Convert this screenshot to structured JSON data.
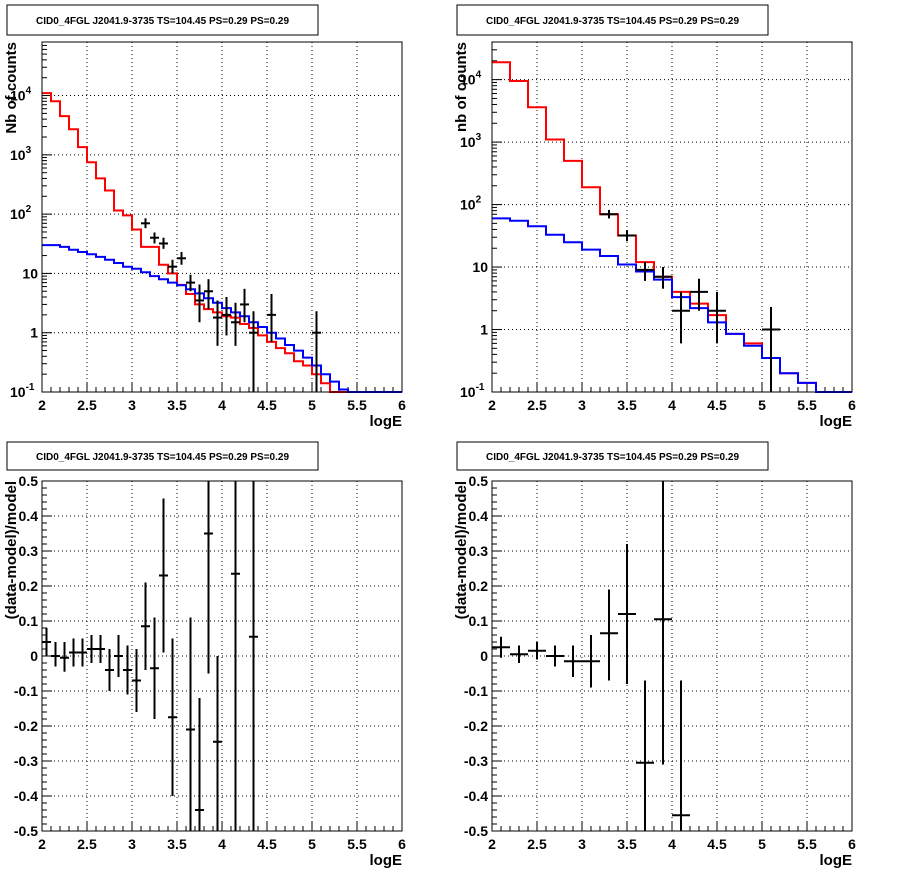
{
  "colors": {
    "model_total": "#ff0000",
    "model_background": "#0000ff",
    "data": "#000000"
  },
  "panels": [
    {
      "id": "counts-left",
      "title": "CID0_4FGL J2041.9-3735 TS=104.45 PS=0.29 PS=0.29"
    },
    {
      "id": "counts-right",
      "title": "CID0_4FGL J2041.9-3735 TS=104.45 PS=0.29 PS=0.29"
    },
    {
      "id": "resid-left",
      "title": "CID0_4FGL J2041.9-3735 TS=104.45 PS=0.29 PS=0.29"
    },
    {
      "id": "resid-right",
      "title": "CID0_4FGL J2041.9-3735 TS=104.45 PS=0.29 PS=0.29"
    }
  ],
  "chart_data": [
    {
      "type": "line",
      "title": "CID0_4FGL J2041.9-3735 TS=104.45 PS=0.29 PS=0.29",
      "xlabel": "logE",
      "ylabel": "Nb of counts",
      "xlim": [
        2,
        6
      ],
      "ylim": [
        0.1,
        80000
      ],
      "log_y": true,
      "grid": true,
      "x_ticks": [
        "2",
        "2.5",
        "3",
        "3.5",
        "4",
        "4.5",
        "5",
        "5.5",
        "6"
      ],
      "y_ticks": [
        "10^-1",
        "1",
        "10",
        "10^2",
        "10^3",
        "10^4"
      ],
      "bin_width": 0.1,
      "bin_starts": [
        2.0,
        2.1,
        2.2,
        2.3,
        2.4,
        2.5,
        2.6,
        2.7,
        2.8,
        2.9,
        3.0,
        3.1,
        3.2,
        3.3,
        3.4,
        3.5,
        3.6,
        3.7,
        3.8,
        3.9,
        4.0,
        4.1,
        4.2,
        4.3,
        4.4,
        4.5,
        4.6,
        4.7,
        4.8,
        4.9,
        5.0,
        5.1,
        5.2,
        5.3,
        5.4,
        5.5,
        5.6,
        5.7,
        5.8,
        5.9
      ],
      "series": [
        {
          "name": "",
          "role": "model_total",
          "values": [
            11000,
            8000,
            4500,
            2700,
            1350,
            750,
            400,
            250,
            115,
            95,
            55,
            28,
            28,
            14,
            10,
            6.4,
            4.5,
            3.0,
            2.5,
            2.2,
            1.9,
            1.8,
            1.4,
            1.2,
            0.9,
            0.7,
            0.55,
            0.45,
            0.33,
            0.28,
            0.2,
            0.14,
            0.1,
            0.1,
            0.1,
            0.1,
            0.1,
            0.1,
            0.1,
            0.1
          ]
        },
        {
          "name": "",
          "role": "model_background",
          "values": [
            30,
            30,
            28,
            25,
            23,
            21,
            19,
            17,
            15,
            13,
            12,
            10.5,
            9,
            8,
            7,
            6.3,
            5.4,
            4.6,
            3.8,
            3.2,
            2.6,
            2.2,
            1.9,
            1.5,
            1.25,
            1.0,
            0.8,
            0.62,
            0.5,
            0.38,
            0.28,
            0.2,
            0.15,
            0.11,
            0.1,
            0.1,
            0.1,
            0.1,
            0.1,
            0.1
          ]
        }
      ],
      "points": [
        {
          "x": 3.15,
          "y": 70,
          "lo": 58,
          "hi": 85
        },
        {
          "x": 3.25,
          "y": 40,
          "lo": 32,
          "hi": 49
        },
        {
          "x": 3.35,
          "y": 32,
          "lo": 26,
          "hi": 40
        },
        {
          "x": 3.45,
          "y": 13,
          "lo": 10,
          "hi": 17
        },
        {
          "x": 3.55,
          "y": 18,
          "lo": 14,
          "hi": 23
        },
        {
          "x": 3.65,
          "y": 7,
          "lo": 5,
          "hi": 9.5
        },
        {
          "x": 3.75,
          "y": 3.5,
          "lo": 1.5,
          "hi": 6.5
        },
        {
          "x": 3.85,
          "y": 5,
          "lo": 2.5,
          "hi": 8
        },
        {
          "x": 3.95,
          "y": 1.8,
          "lo": 0.6,
          "hi": 3.5
        },
        {
          "x": 4.05,
          "y": 2.0,
          "lo": 0.9,
          "hi": 4.0
        },
        {
          "x": 4.15,
          "y": 1.5,
          "lo": 0.6,
          "hi": 3.2
        },
        {
          "x": 4.25,
          "y": 3,
          "lo": 1.5,
          "hi": 5.5
        },
        {
          "x": 4.35,
          "y": 1,
          "lo": 0.1,
          "hi": 2.3
        },
        {
          "x": 4.55,
          "y": 2,
          "lo": 0.7,
          "hi": 4.5
        },
        {
          "x": 5.05,
          "y": 1,
          "lo": 0.1,
          "hi": 2.3
        }
      ]
    },
    {
      "type": "line",
      "title": "CID0_4FGL J2041.9-3735 TS=104.45 PS=0.29 PS=0.29",
      "xlabel": "logE",
      "ylabel": "nb of counts",
      "xlim": [
        2,
        6
      ],
      "ylim": [
        0.1,
        40000
      ],
      "log_y": true,
      "grid": true,
      "x_ticks": [
        "2",
        "2.5",
        "3",
        "3.5",
        "4",
        "4.5",
        "5",
        "5.5",
        "6"
      ],
      "y_ticks": [
        "10^-1",
        "1",
        "10",
        "10^2",
        "10^3",
        "10^4"
      ],
      "bin_width": 0.2,
      "bin_starts": [
        2.0,
        2.2,
        2.4,
        2.6,
        2.8,
        3.0,
        3.2,
        3.4,
        3.6,
        3.8,
        4.0,
        4.2,
        4.4,
        4.6,
        4.8,
        5.0,
        5.2,
        5.4,
        5.6,
        5.8
      ],
      "series": [
        {
          "name": "",
          "role": "model_total",
          "values": [
            19000,
            9500,
            3600,
            1100,
            500,
            190,
            70,
            32,
            12,
            7,
            4,
            2.6,
            1.7,
            0.85,
            0.6,
            0.35,
            0.2,
            0.14,
            0.1,
            0.1
          ]
        },
        {
          "name": "",
          "role": "model_background",
          "values": [
            60,
            55,
            45,
            33,
            25,
            19,
            15,
            11,
            8.5,
            6.3,
            3.3,
            2.2,
            1.3,
            0.85,
            0.55,
            0.35,
            0.2,
            0.14,
            0.1,
            0.1
          ]
        }
      ],
      "points": [
        {
          "x": 3.3,
          "y": 70,
          "lo": 60,
          "hi": 82
        },
        {
          "x": 3.5,
          "y": 32,
          "lo": 26,
          "hi": 39
        },
        {
          "x": 3.7,
          "y": 9,
          "lo": 6,
          "hi": 12
        },
        {
          "x": 3.9,
          "y": 7,
          "lo": 4.5,
          "hi": 10
        },
        {
          "x": 4.1,
          "y": 2,
          "lo": 0.6,
          "hi": 4
        },
        {
          "x": 4.3,
          "y": 4,
          "lo": 2,
          "hi": 6.5
        },
        {
          "x": 4.5,
          "y": 2,
          "lo": 0.6,
          "hi": 4
        },
        {
          "x": 5.1,
          "y": 1,
          "lo": 0.1,
          "hi": 2.3
        }
      ]
    },
    {
      "type": "scatter",
      "title": "CID0_4FGL J2041.9-3735 TS=104.45 PS=0.29 PS=0.29",
      "xlabel": "logE",
      "ylabel": "(data-model)/model",
      "xlim": [
        2,
        6
      ],
      "ylim": [
        -0.5,
        0.5
      ],
      "grid": true,
      "x_ticks": [
        "2",
        "2.5",
        "3",
        "3.5",
        "4",
        "4.5",
        "5",
        "5.5",
        "6"
      ],
      "y_ticks": [
        "-0.5",
        "-0.4",
        "-0.3",
        "-0.2",
        "-0.1",
        "0",
        "0.1",
        "0.2",
        "0.3",
        "0.4",
        "0.5"
      ],
      "bin_width": 0.1,
      "points": [
        {
          "x": 2.05,
          "y": 0.04,
          "lo": 0.0,
          "hi": 0.08
        },
        {
          "x": 2.15,
          "y": 0.0,
          "lo": -0.03,
          "hi": 0.04
        },
        {
          "x": 2.25,
          "y": -0.005,
          "lo": -0.045,
          "hi": 0.04
        },
        {
          "x": 2.35,
          "y": 0.01,
          "lo": -0.03,
          "hi": 0.05
        },
        {
          "x": 2.45,
          "y": 0.01,
          "lo": -0.03,
          "hi": 0.05
        },
        {
          "x": 2.55,
          "y": 0.02,
          "lo": -0.02,
          "hi": 0.06
        },
        {
          "x": 2.65,
          "y": 0.02,
          "lo": -0.02,
          "hi": 0.06
        },
        {
          "x": 2.75,
          "y": -0.04,
          "lo": -0.1,
          "hi": 0.02
        },
        {
          "x": 2.85,
          "y": 0.0,
          "lo": -0.06,
          "hi": 0.06
        },
        {
          "x": 2.95,
          "y": -0.04,
          "lo": -0.11,
          "hi": 0.03
        },
        {
          "x": 3.05,
          "y": -0.07,
          "lo": -0.16,
          "hi": 0.02
        },
        {
          "x": 3.15,
          "y": 0.085,
          "lo": -0.04,
          "hi": 0.21
        },
        {
          "x": 3.25,
          "y": -0.035,
          "lo": -0.18,
          "hi": 0.11
        },
        {
          "x": 3.35,
          "y": 0.23,
          "lo": 0.01,
          "hi": 0.45
        },
        {
          "x": 3.45,
          "y": -0.175,
          "lo": -0.4,
          "hi": 0.05
        },
        {
          "x": 3.65,
          "y": -0.21,
          "lo": -0.5,
          "hi": 0.11
        },
        {
          "x": 3.75,
          "y": -0.44,
          "lo": -0.5,
          "hi": -0.12
        },
        {
          "x": 3.85,
          "y": 0.35,
          "lo": -0.05,
          "hi": 0.5
        },
        {
          "x": 3.95,
          "y": -0.245,
          "lo": -0.5,
          "hi": 0.0
        },
        {
          "x": 4.15,
          "y": 0.235,
          "lo": -0.5,
          "hi": 0.5
        },
        {
          "x": 4.35,
          "y": 0.055,
          "lo": -0.5,
          "hi": 0.5
        }
      ]
    },
    {
      "type": "scatter",
      "title": "CID0_4FGL J2041.9-3735 TS=104.45 PS=0.29 PS=0.29",
      "xlabel": "logE",
      "ylabel": "(data-model)/model",
      "xlim": [
        2,
        6
      ],
      "ylim": [
        -0.5,
        0.5
      ],
      "grid": true,
      "x_ticks": [
        "2",
        "2.5",
        "3",
        "3.5",
        "4",
        "4.5",
        "5",
        "5.5",
        "6"
      ],
      "y_ticks": [
        "-0.5",
        "-0.4",
        "-0.3",
        "-0.2",
        "-0.1",
        "0",
        "0.1",
        "0.2",
        "0.3",
        "0.4",
        "0.5"
      ],
      "bin_width": 0.2,
      "points": [
        {
          "x": 2.1,
          "y": 0.025,
          "lo": -0.005,
          "hi": 0.055
        },
        {
          "x": 2.3,
          "y": 0.005,
          "lo": -0.02,
          "hi": 0.03
        },
        {
          "x": 2.5,
          "y": 0.015,
          "lo": -0.01,
          "hi": 0.04
        },
        {
          "x": 2.7,
          "y": 0.0,
          "lo": -0.03,
          "hi": 0.03
        },
        {
          "x": 2.9,
          "y": -0.015,
          "lo": -0.06,
          "hi": 0.03
        },
        {
          "x": 3.1,
          "y": -0.015,
          "lo": -0.09,
          "hi": 0.06
        },
        {
          "x": 3.3,
          "y": 0.065,
          "lo": -0.07,
          "hi": 0.19
        },
        {
          "x": 3.5,
          "y": 0.12,
          "lo": -0.08,
          "hi": 0.32
        },
        {
          "x": 3.7,
          "y": -0.305,
          "lo": -0.5,
          "hi": -0.07
        },
        {
          "x": 3.9,
          "y": 0.105,
          "lo": -0.31,
          "hi": 0.5
        },
        {
          "x": 4.1,
          "y": -0.455,
          "lo": -0.5,
          "hi": -0.07
        }
      ]
    }
  ]
}
